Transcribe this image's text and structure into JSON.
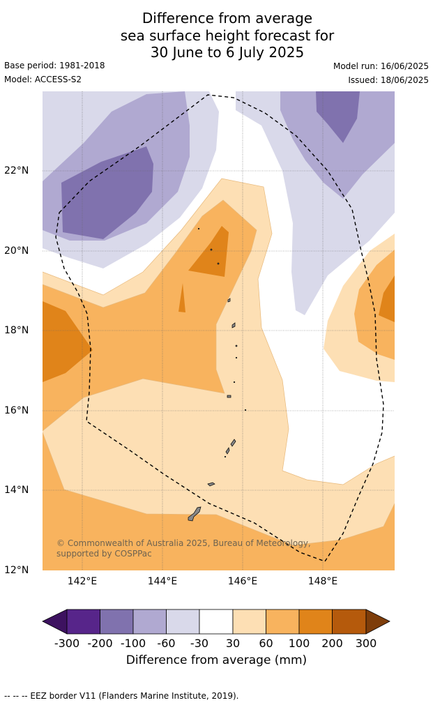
{
  "title": {
    "line1": "Difference from average",
    "line2": "sea surface height forecast for",
    "line3": "30 June to 6 July 2025"
  },
  "meta": {
    "base_period": "Base period: 1981-2018",
    "model": "Model: ACCESS-S2",
    "model_run": "Model run: 16/06/2025",
    "issued": "Issued: 18/06/2025"
  },
  "map": {
    "lon_ticks": [
      "142°E",
      "144°E",
      "146°E",
      "148°E"
    ],
    "lat_ticks": [
      "22°N",
      "20°N",
      "18°N",
      "16°N",
      "14°N",
      "12°N"
    ],
    "copyright": "© Commonwealth of Australia 2025, Bureau of Meteorology, supported by COSPPac"
  },
  "colorbar": {
    "ticks": [
      "-300",
      "-200",
      "-100",
      "-60",
      "-30",
      "30",
      "60",
      "100",
      "200",
      "300"
    ],
    "colors": [
      "#3d1260",
      "#57258a",
      "#8072ae",
      "#b0a9d1",
      "#d9d9ea",
      "#ffffff",
      "#fddfb4",
      "#f8b35e",
      "#e0841a",
      "#b55a0c",
      "#7e3d0a"
    ],
    "label": "Difference from average (mm)"
  },
  "footer": "--  --  -- EEZ border V11 (Flanders Marine Institute, 2019)."
}
